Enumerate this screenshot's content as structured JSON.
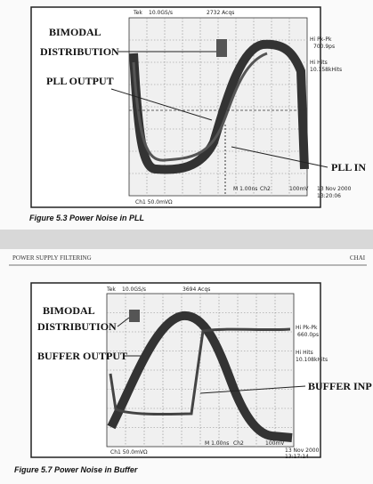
{
  "figure1": {
    "scope": {
      "brand": "Tek",
      "sample_rate": "10.0GS/s",
      "acqs": "2732 Acqs",
      "stats": [
        "Hi Pk-Pk",
        "700.9ps",
        "Hi Hits",
        "10.158kHits"
      ],
      "footer": [
        "Ch1 50.0mVΩ",
        "M 1.00ns",
        "Ch2",
        "100mV"
      ],
      "timestamp": [
        "13 Nov 2000",
        "13:20:06"
      ]
    },
    "labels": [
      "BIMODAL",
      "DISTRIBUTION",
      "PLL OUTPUT",
      "PLL IN"
    ],
    "caption": "Figure 5.3 Power Noise in PLL"
  },
  "header": {
    "left": "POWER SUPPLY FILTERING",
    "right": "CHAI"
  },
  "figure2": {
    "scope": {
      "brand": "Tek",
      "sample_rate": "10.0GS/s",
      "acqs": "3694 Acqs",
      "stats": [
        "Hi Pk-Pk",
        "660.0ps",
        "Hi Hits",
        "10.108kHits"
      ],
      "footer": [
        "Ch1 50.0mVΩ",
        "M 1.00ns",
        "Ch2",
        "100mV"
      ],
      "timestamp": [
        "13 Nov 2000",
        "13:17:14"
      ]
    },
    "labels": [
      "BIMODAL",
      "DISTRIBUTION",
      "BUFFER OUTPUT",
      "BUFFER INP"
    ],
    "caption": "Figure 5.7 Power Noise in Buffer"
  }
}
